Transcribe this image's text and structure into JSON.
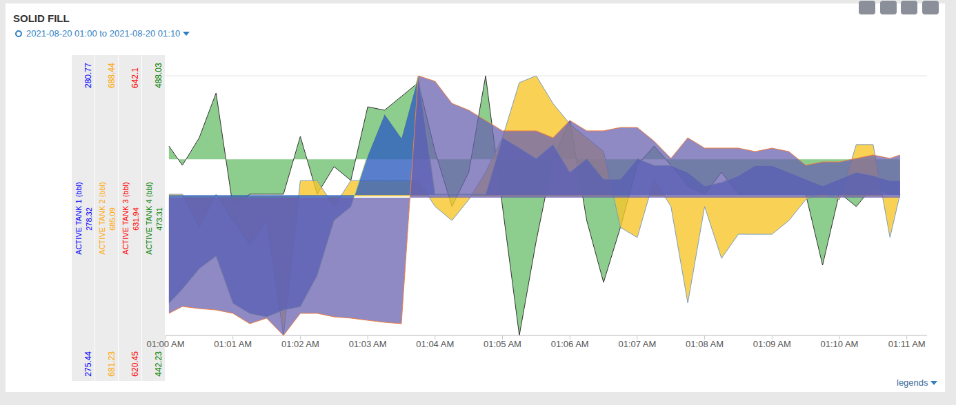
{
  "chart_data": {
    "type": "area",
    "title": "SOLID FILL",
    "subtitle": "2021-08-20 01:00 to 2021-08-20 01:10",
    "legend_toggle": "legends",
    "grid": true,
    "x": [
      0.05,
      0.25,
      0.5,
      0.75,
      1,
      1.25,
      1.5,
      1.75,
      2,
      2.25,
      2.5,
      2.75,
      3,
      3.25,
      3.5,
      3.75,
      4,
      4.25,
      4.5,
      4.75,
      5,
      5.25,
      5.5,
      5.75,
      6,
      6.25,
      6.5,
      6.75,
      7,
      7.25,
      7.5,
      7.75,
      8,
      8.25,
      8.5,
      8.75,
      9,
      9.25,
      9.5,
      9.75,
      10,
      10.25,
      10.5,
      10.75,
      10.9
    ],
    "xlim": [
      0,
      11.3
    ],
    "xticks": [
      {
        "value": 0,
        "label": "01:00 AM"
      },
      {
        "value": 1,
        "label": "01:01 AM"
      },
      {
        "value": 2,
        "label": "01:02 AM"
      },
      {
        "value": 3,
        "label": "01:03 AM"
      },
      {
        "value": 4,
        "label": "01:04 AM"
      },
      {
        "value": 5,
        "label": "01:05 AM"
      },
      {
        "value": 6,
        "label": "01:06 AM"
      },
      {
        "value": 7,
        "label": "01:07 AM"
      },
      {
        "value": 8,
        "label": "01:08 AM"
      },
      {
        "value": 9,
        "label": "01:09 AM"
      },
      {
        "value": 10,
        "label": "01:10 AM"
      },
      {
        "value": 11,
        "label": "01:11 AM"
      }
    ],
    "series": [
      {
        "name": "ACTIVE TANK 1 (bbl)",
        "color": "#2f5fbf",
        "ylim": [
          275.44,
          280.77
        ],
        "yticks": [
          275.44,
          280.77
        ],
        "base": 278.32,
        "values": [
          276.1,
          276.39,
          276.81,
          277.07,
          276.1,
          275.89,
          275.82,
          275.96,
          276.03,
          276.67,
          277.8,
          278.08,
          279.14,
          279.99,
          279.5,
          280.77,
          278.34,
          278.34,
          278.34,
          278.34,
          279.5,
          279.29,
          279.07,
          279.36,
          278.79,
          279.07,
          278.65,
          278.65,
          279.07,
          278.93,
          278.93,
          278.79,
          278.51,
          278.58,
          278.72,
          278.93,
          278.93,
          278.79,
          278.65,
          278.51,
          278.65,
          278.79,
          278.72,
          278.62,
          278.62
        ]
      },
      {
        "name": "ACTIVE TANK 2 (bbl)",
        "color": "#f7c72b",
        "ylim": [
          681.23,
          688.44
        ],
        "yticks": [
          681.23,
          688.44
        ],
        "base": 685.09,
        "values": [
          685.15,
          685.15,
          684.23,
          685.15,
          684.42,
          683.75,
          684.42,
          681.23,
          685.53,
          685.53,
          684.81,
          685.53,
          685.53,
          685.53,
          685.53,
          685.53,
          684.81,
          684.42,
          685.0,
          685.76,
          686.72,
          688.25,
          688.44,
          687.67,
          687.1,
          686.72,
          686.34,
          684.23,
          683.95,
          685.57,
          684.81,
          682.13,
          684.81,
          683.37,
          684.04,
          684.04,
          684.04,
          684.42,
          685.0,
          685.19,
          685.0,
          686.53,
          686.53,
          683.95,
          685.15
        ]
      },
      {
        "name": "ACTIVE TANK 3 (bbl)",
        "color": "#6a62b0",
        "ylim": [
          620.45,
          642.1
        ],
        "yticks": [
          620.45,
          642.1
        ],
        "base": 631.94,
        "values": [
          622.29,
          622.86,
          622.69,
          622.57,
          622.29,
          621.43,
          621.89,
          620.45,
          622.29,
          622.29,
          622.0,
          621.89,
          621.71,
          621.54,
          621.43,
          642.1,
          641.64,
          639.8,
          639.23,
          638.37,
          637.51,
          637.51,
          637.51,
          636.93,
          638.37,
          637.51,
          637.51,
          637.79,
          637.79,
          636.65,
          635.21,
          636.93,
          636.07,
          636.07,
          636.07,
          635.78,
          636.07,
          635.78,
          634.64,
          634.92,
          634.92,
          635.21,
          635.5,
          635.21,
          635.5
        ]
      },
      {
        "name": "ACTIVE TANK 4 (bbl)",
        "color": "#5cb85c",
        "ylim": [
          442.23,
          488.03
        ],
        "yticks": [
          442.23,
          488.03
        ],
        "base": 473.31,
        "values": [
          475.64,
          472.24,
          477.1,
          484.99,
          464.95,
          467.14,
          467.14,
          467.14,
          477.34,
          467.14,
          472.0,
          469.57,
          482.56,
          481.96,
          484.39,
          486.82,
          474.67,
          464.95,
          471.02,
          488.03,
          464.95,
          442.23,
          458.87,
          473.45,
          480.14,
          462.52,
          451.58,
          461.3,
          472.24,
          475.64,
          472.24,
          468.59,
          467.14,
          471.02,
          467.14,
          467.14,
          467.14,
          467.14,
          467.14,
          454.62,
          467.38,
          464.95,
          468.59,
          467.14,
          467.14
        ]
      }
    ]
  }
}
